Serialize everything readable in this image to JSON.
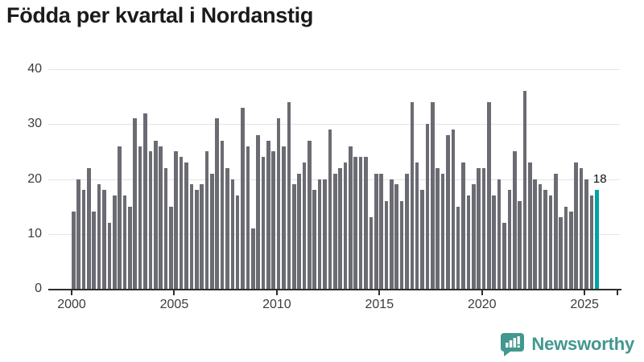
{
  "page": {
    "title": "Födda per kvartal i Nordanstig"
  },
  "logo": {
    "text": "Newsworthy",
    "brand_color": "#42978f",
    "icon": "speech-bubble-bar-chart"
  },
  "chart_data": {
    "type": "bar",
    "title": "Födda per kvartal i Nordanstig",
    "period": "quarterly",
    "start": "2000 Q1",
    "end": "2025 Q3",
    "values": [
      14,
      20,
      18,
      22,
      14,
      19,
      18,
      12,
      17,
      26,
      17,
      15,
      31,
      26,
      32,
      25,
      27,
      26,
      22,
      15,
      25,
      24,
      23,
      19,
      18,
      19,
      25,
      21,
      31,
      27,
      22,
      20,
      17,
      33,
      26,
      11,
      28,
      24,
      27,
      25,
      31,
      26,
      34,
      19,
      21,
      23,
      27,
      18,
      20,
      20,
      29,
      21,
      22,
      23,
      26,
      24,
      24,
      24,
      13,
      21,
      21,
      16,
      20,
      19,
      16,
      21,
      34,
      23,
      18,
      30,
      34,
      22,
      21,
      28,
      29,
      15,
      23,
      17,
      19,
      22,
      22,
      34,
      17,
      20,
      12,
      18,
      25,
      16,
      36,
      23,
      20,
      19,
      18,
      17,
      21,
      13,
      15,
      14,
      23,
      22,
      20,
      17,
      18
    ],
    "x_axis": {
      "tick_labels": [
        "2000",
        "2005",
        "2010",
        "2015",
        "2020",
        "2025"
      ],
      "tick_every_quarters": 20
    },
    "y_axis": {
      "ticks": [
        0,
        10,
        20,
        30,
        40
      ],
      "range": [
        0,
        40
      ],
      "gridlines": true
    },
    "bar_color": "#6b6b73",
    "highlight": {
      "index": 102,
      "value": 18,
      "label": "18",
      "color": "#00a1a5"
    },
    "legend": "none"
  }
}
